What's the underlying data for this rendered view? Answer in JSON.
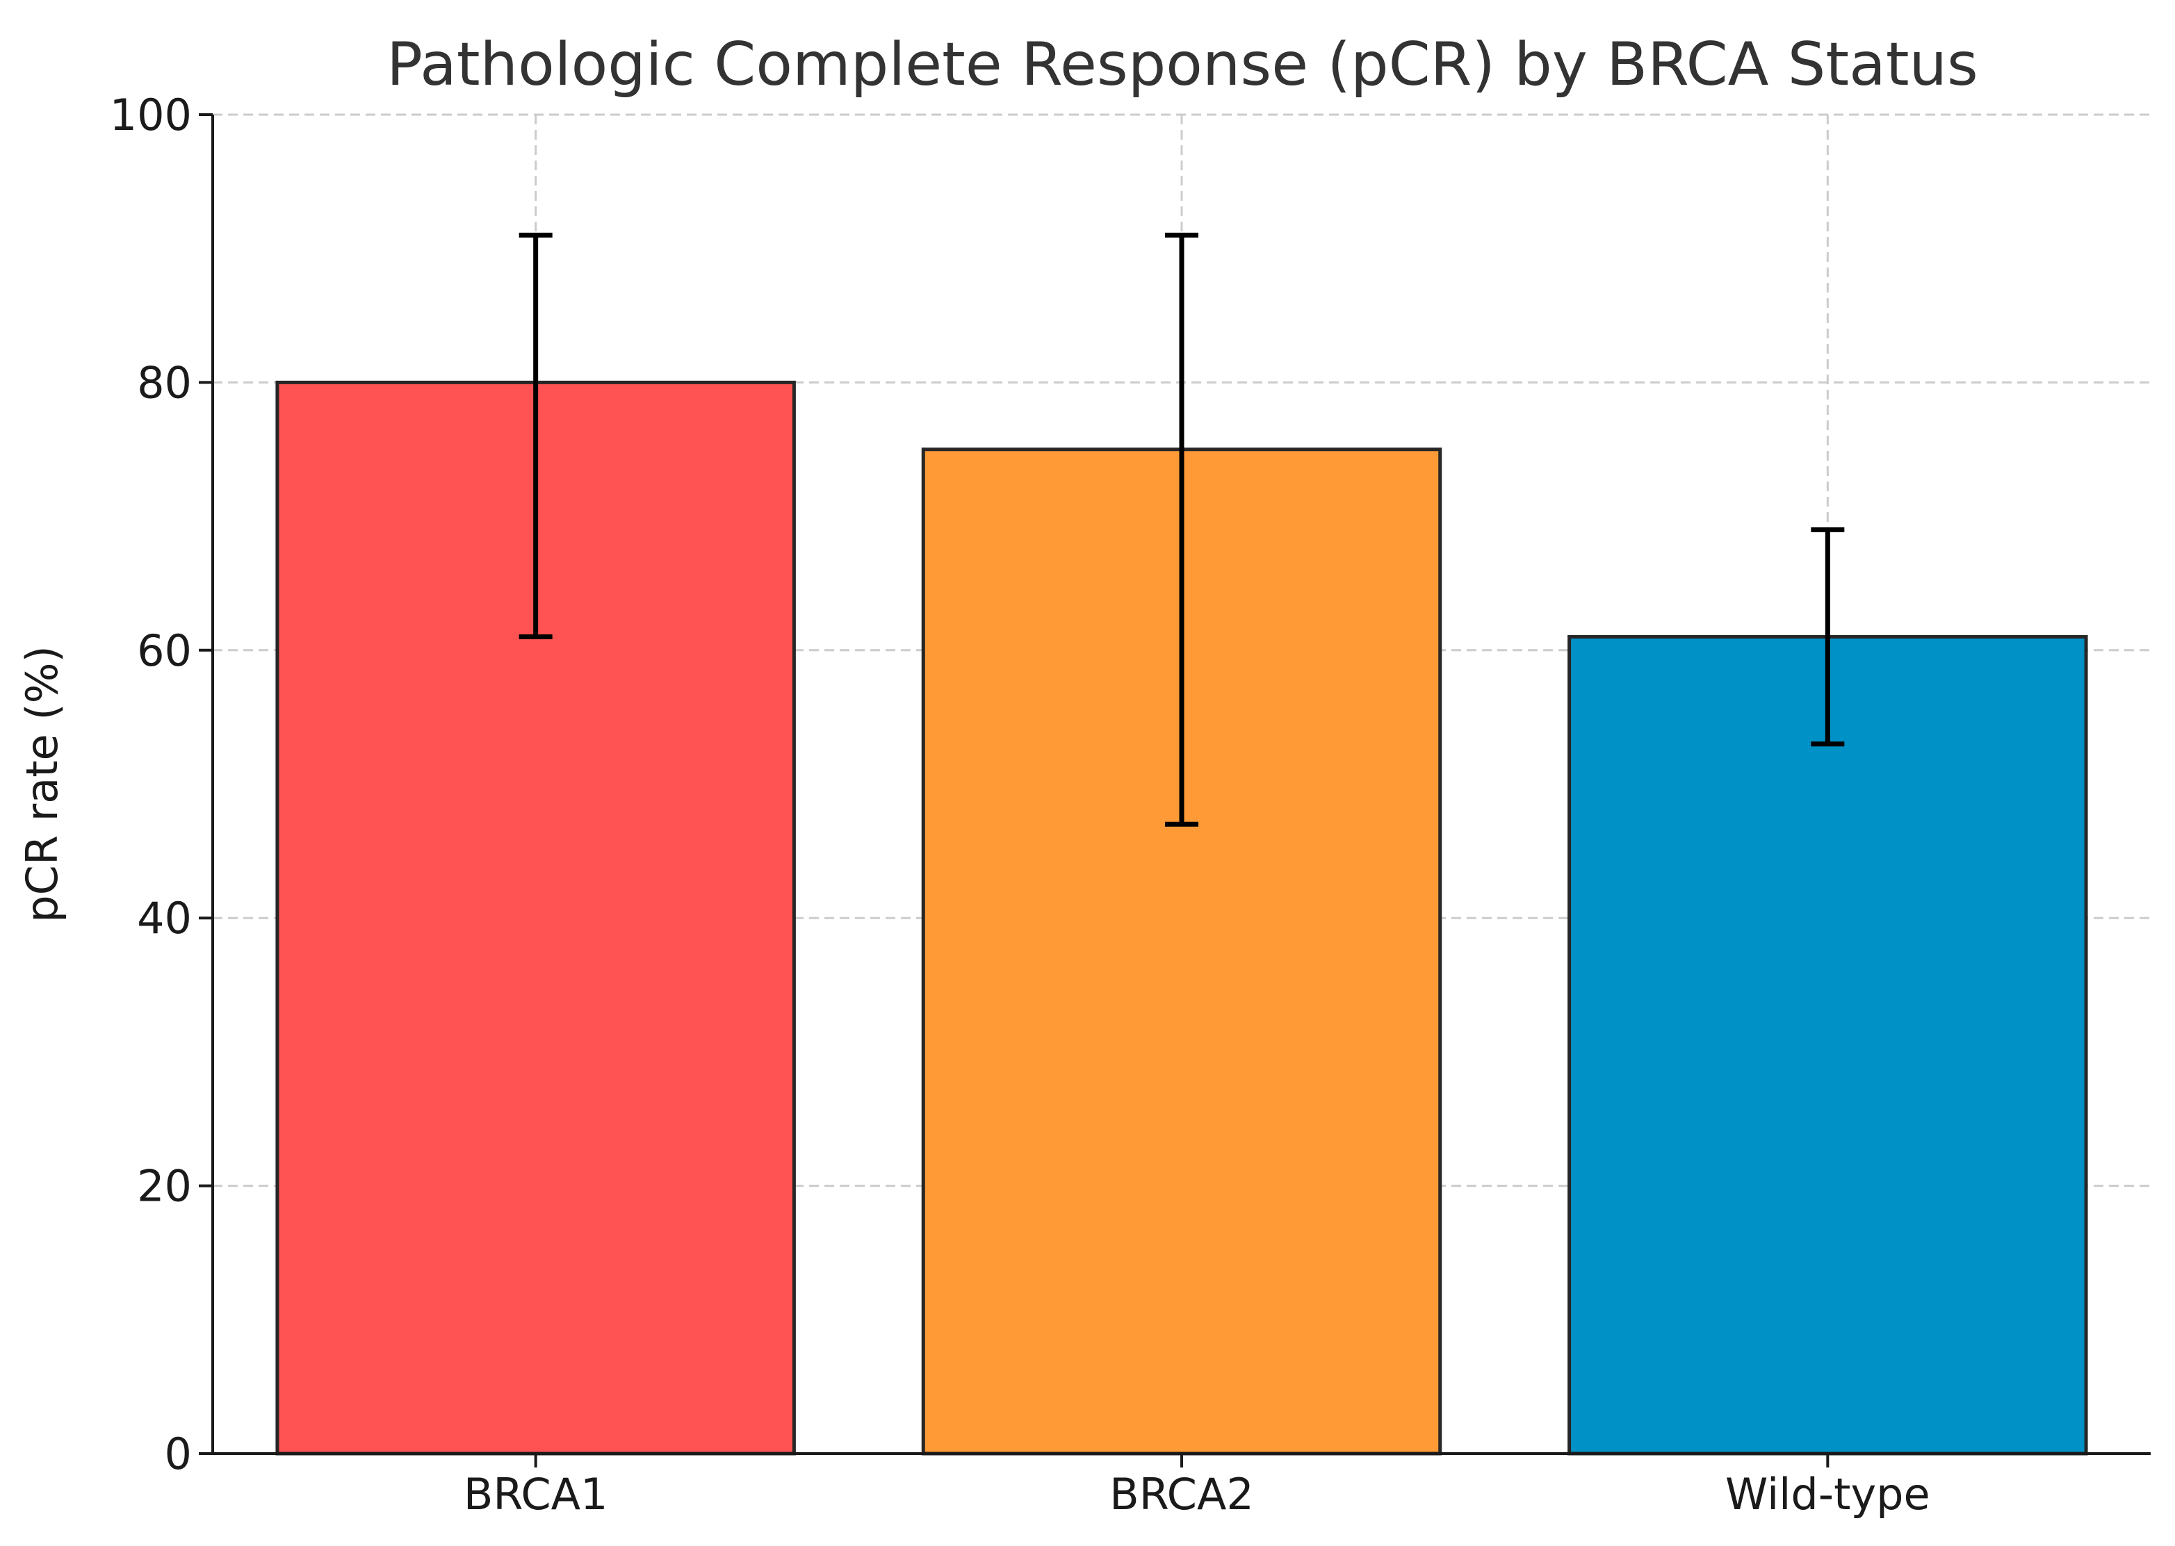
{
  "chart_data": {
    "type": "bar",
    "title": "Pathologic Complete Response (pCR) by BRCA Status",
    "xlabel": "",
    "ylabel": "pCR rate (%)",
    "categories": [
      "BRCA1",
      "BRCA2",
      "Wild-type"
    ],
    "values": [
      80,
      75,
      61
    ],
    "error_low": [
      61,
      47,
      53
    ],
    "error_high": [
      91,
      91,
      69
    ],
    "colors": [
      "#ff5252",
      "#ff9a36",
      "#0091c7"
    ],
    "edge_color": "#262626",
    "error_color": "#000000",
    "ylim": [
      0,
      100
    ],
    "yticks": [
      "0",
      "20",
      "40",
      "60",
      "80",
      "100"
    ],
    "grid": true,
    "legend": "none"
  }
}
